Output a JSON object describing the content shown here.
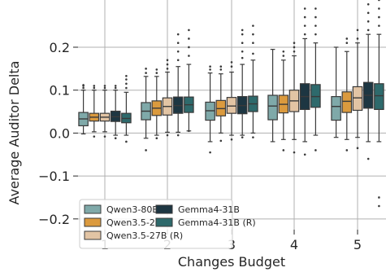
{
  "chart_data": {
    "type": "box",
    "xlabel": "Changes Budget",
    "ylabel": "Average Auditor Delta",
    "categories": [
      "1",
      "2",
      "3",
      "4",
      "5"
    ],
    "yticks": [
      -0.2,
      -0.1,
      0.0,
      0.1,
      0.2
    ],
    "ytick_labels": [
      "−0.2",
      "−0.1",
      "0.0",
      "0.1",
      "0.2"
    ],
    "ylim": [
      -0.225,
      0.31
    ],
    "grid": true,
    "legend_position": "lower-left",
    "series": [
      {
        "name": "Qwen3-80B",
        "color": "#7fa9a9",
        "boxes": [
          {
            "whislo": -0.002,
            "q1": 0.017,
            "med": 0.033,
            "q3": 0.048,
            "whishi": 0.1,
            "fliers": [
              0.105,
              0.11,
              0.112
            ]
          },
          {
            "whislo": -0.012,
            "q1": 0.031,
            "med": 0.051,
            "q3": 0.071,
            "whishi": 0.132,
            "fliers": [
              0.14,
              0.15,
              -0.04
            ]
          },
          {
            "whislo": -0.02,
            "q1": 0.03,
            "med": 0.052,
            "q3": 0.072,
            "whishi": 0.14,
            "fliers": [
              0.148,
              0.155,
              -0.045
            ]
          },
          {
            "whislo": -0.02,
            "q1": 0.031,
            "med": 0.063,
            "q3": 0.088,
            "whishi": 0.195,
            "fliers": []
          },
          {
            "whislo": -0.01,
            "q1": 0.03,
            "med": 0.062,
            "q3": 0.085,
            "whishi": 0.2,
            "fliers": []
          }
        ]
      },
      {
        "name": "Qwen3.5-27B",
        "color": "#db9a3e",
        "boxes": [
          {
            "whislo": 0.003,
            "q1": 0.028,
            "med": 0.037,
            "q3": 0.046,
            "whishi": 0.1,
            "fliers": [
              0.105,
              0.11,
              -0.008
            ]
          },
          {
            "whislo": -0.005,
            "q1": 0.041,
            "med": 0.058,
            "q3": 0.075,
            "whishi": 0.132,
            "fliers": [
              0.14,
              0.148,
              -0.012
            ]
          },
          {
            "whislo": 0.0,
            "q1": 0.04,
            "med": 0.057,
            "q3": 0.076,
            "whishi": 0.138,
            "fliers": [
              0.148,
              0.155,
              -0.018
            ]
          },
          {
            "whislo": -0.015,
            "q1": 0.047,
            "med": 0.067,
            "q3": 0.088,
            "whishi": 0.17,
            "fliers": [
              0.18,
              0.19,
              -0.04
            ]
          },
          {
            "whislo": -0.015,
            "q1": 0.048,
            "med": 0.074,
            "q3": 0.096,
            "whishi": 0.19,
            "fliers": [
              0.21,
              0.22,
              -0.04
            ]
          }
        ]
      },
      {
        "name": "Qwen3.5-27B (R)",
        "color": "#e2c4a4",
        "boxes": [
          {
            "whislo": 0.003,
            "q1": 0.028,
            "med": 0.037,
            "q3": 0.046,
            "whishi": 0.1,
            "fliers": [
              0.105,
              0.11,
              -0.008
            ]
          },
          {
            "whislo": 0.002,
            "q1": 0.042,
            "med": 0.062,
            "q3": 0.082,
            "whishi": 0.142,
            "fliers": [
              0.15,
              0.16,
              0.17,
              -0.005
            ]
          },
          {
            "whislo": -0.005,
            "q1": 0.046,
            "med": 0.063,
            "q3": 0.083,
            "whishi": 0.142,
            "fliers": [
              0.155,
              0.165,
              -0.015
            ]
          },
          {
            "whislo": -0.015,
            "q1": 0.05,
            "med": 0.075,
            "q3": 0.1,
            "whishi": 0.18,
            "fliers": [
              0.19,
              0.2,
              0.21,
              -0.045
            ]
          },
          {
            "whislo": -0.01,
            "q1": 0.053,
            "med": 0.082,
            "q3": 0.108,
            "whishi": 0.21,
            "fliers": [
              0.22,
              0.24,
              -0.035
            ]
          }
        ]
      },
      {
        "name": "Gemma4-31B",
        "color": "#1d3642",
        "boxes": [
          {
            "whislo": -0.005,
            "q1": 0.027,
            "med": 0.038,
            "q3": 0.051,
            "whishi": 0.1,
            "fliers": [
              0.105,
              0.11,
              -0.012
            ]
          },
          {
            "whislo": 0.002,
            "q1": 0.046,
            "med": 0.064,
            "q3": 0.084,
            "whishi": 0.155,
            "fliers": [
              0.17,
              0.19,
              0.21,
              0.23,
              -0.005
            ]
          },
          {
            "whislo": -0.005,
            "q1": 0.045,
            "med": 0.064,
            "q3": 0.085,
            "whishi": 0.16,
            "fliers": [
              0.175,
              0.19,
              0.21,
              0.23,
              0.24,
              -0.01
            ]
          },
          {
            "whislo": -0.02,
            "q1": 0.055,
            "med": 0.085,
            "q3": 0.115,
            "whishi": 0.22,
            "fliers": [
              0.23,
              0.25,
              0.27,
              0.29,
              -0.05
            ]
          },
          {
            "whislo": -0.02,
            "q1": 0.058,
            "med": 0.088,
            "q3": 0.118,
            "whishi": 0.23,
            "fliers": [
              0.24,
              0.26,
              0.28,
              0.3,
              -0.06
            ]
          }
        ]
      },
      {
        "name": "Gemma4-31B (R)",
        "color": "#2e6a6c",
        "boxes": [
          {
            "whislo": -0.005,
            "q1": 0.024,
            "med": 0.034,
            "q3": 0.046,
            "whishi": 0.095,
            "fliers": [
              0.105,
              0.115,
              0.125,
              0.133,
              -0.02
            ]
          },
          {
            "whislo": 0.005,
            "q1": 0.048,
            "med": 0.066,
            "q3": 0.084,
            "whishi": 0.16,
            "fliers": [
              0.18,
              0.2,
              0.22,
              0.24,
              0.005
            ]
          },
          {
            "whislo": 0.0,
            "q1": 0.05,
            "med": 0.068,
            "q3": 0.086,
            "whishi": 0.17,
            "fliers": [
              0.185,
              0.21,
              0.23,
              0.25,
              -0.01
            ]
          },
          {
            "whislo": -0.005,
            "q1": 0.06,
            "med": 0.085,
            "q3": 0.113,
            "whishi": 0.21,
            "fliers": [
              0.23,
              0.25,
              0.27,
              0.29,
              -0.04
            ]
          },
          {
            "whislo": -0.02,
            "q1": 0.055,
            "med": 0.087,
            "q3": 0.115,
            "whishi": 0.23,
            "fliers": [
              0.25,
              0.27,
              0.29,
              0.31,
              -0.15,
              -0.17
            ]
          }
        ]
      }
    ]
  }
}
